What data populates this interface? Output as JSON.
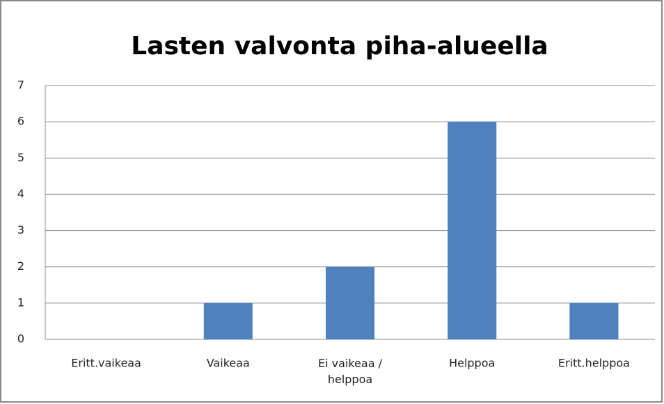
{
  "chart_data": {
    "type": "bar",
    "title": "Lasten valvonta piha-alueella",
    "categories": [
      "Eritt.vaikeaa",
      "Vaikeaa",
      "Ei vaikeaa / helppoa",
      "Helppoa",
      "Eritt.helppoa"
    ],
    "values": [
      0,
      1,
      2,
      6,
      1
    ],
    "color": "#4f81bd",
    "ylim": [
      0,
      7
    ],
    "yticks": [
      0,
      1,
      2,
      3,
      4,
      5,
      6,
      7
    ],
    "grid": true
  }
}
